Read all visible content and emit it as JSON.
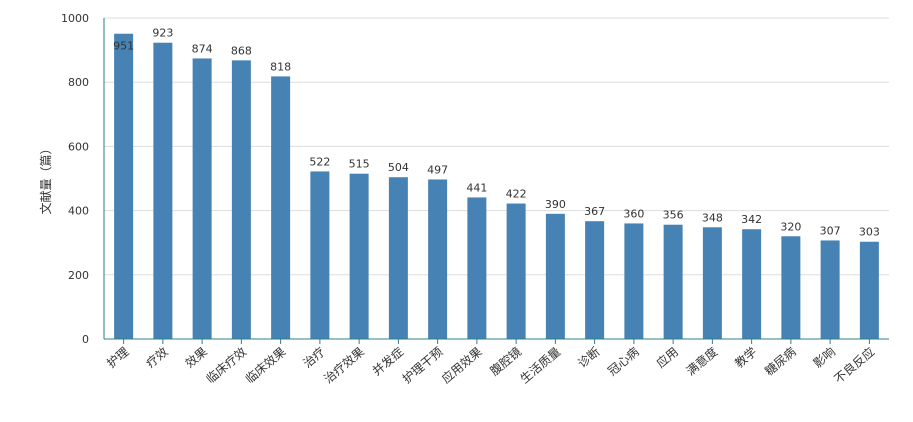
{
  "chart_data": {
    "type": "bar",
    "categories": [
      "护理",
      "疗效",
      "效果",
      "临床疗效",
      "临床效果",
      "治疗",
      "治疗效果",
      "并发症",
      "护理干预",
      "应用效果",
      "腹腔镜",
      "生活质量",
      "诊断",
      "冠心病",
      "应用",
      "满意度",
      "教学",
      "糖尿病",
      "影响",
      "不良反应"
    ],
    "values": [
      951,
      923,
      874,
      868,
      818,
      522,
      515,
      504,
      497,
      441,
      422,
      390,
      367,
      360,
      356,
      348,
      342,
      320,
      307,
      303
    ],
    "ylabel": "文献量（篇）",
    "ylim": [
      0,
      1000
    ],
    "yticks": [
      0,
      200,
      400,
      600,
      800,
      1000
    ],
    "grid": true,
    "colors": {
      "bar": "#4682b4",
      "axis": "#2f7f8f",
      "grid": "#dddddd"
    }
  }
}
